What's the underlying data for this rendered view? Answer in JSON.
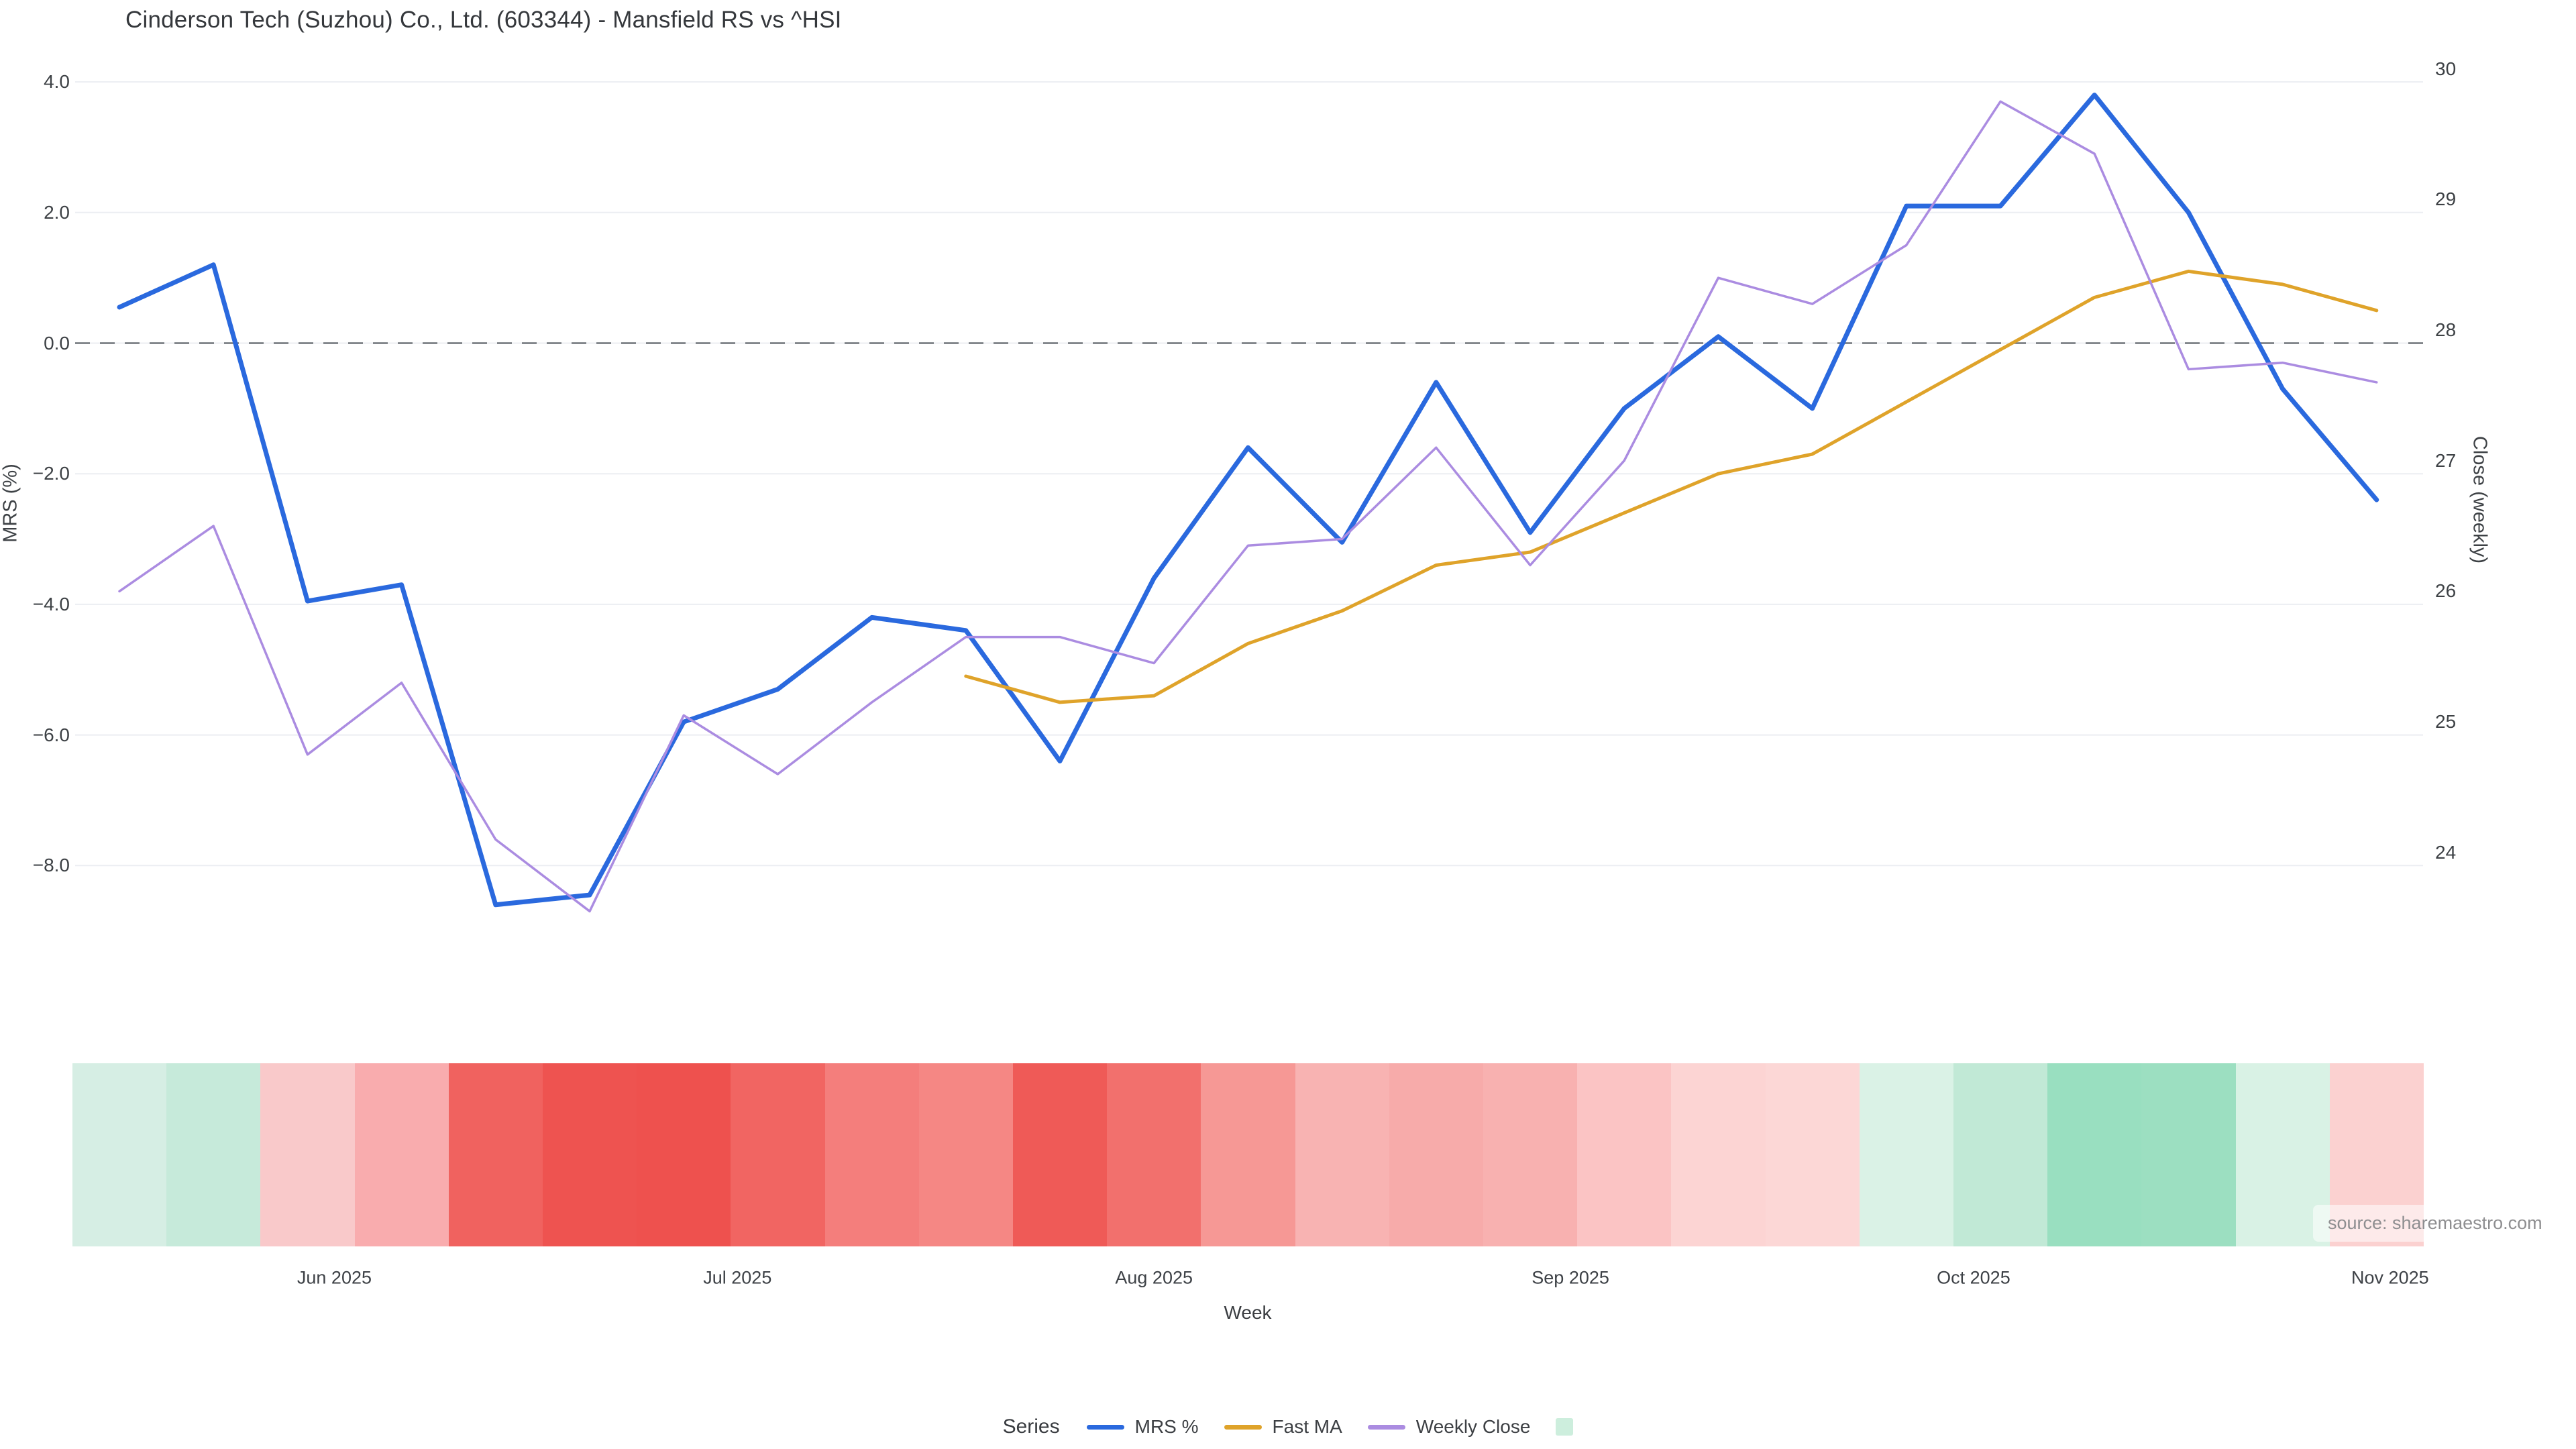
{
  "title": "Cinderson Tech (Suzhou) Co., Ltd. (603344) - Mansfield RS vs ^HSI",
  "source_note": "source: sharemaestro.com",
  "legend": {
    "heading": "Series",
    "items": [
      {
        "label": "MRS %",
        "color": "#2a69de",
        "swatch": "line"
      },
      {
        "label": "Fast MA",
        "color": "#dfa32a",
        "swatch": "line"
      },
      {
        "label": "Weekly Close",
        "color": "#ab8ce1",
        "swatch": "line"
      },
      {
        "label": "",
        "color": "#cdeedd",
        "swatch": "square"
      }
    ]
  },
  "chart_data": {
    "type": "line",
    "title": "Cinderson Tech (Suzhou) Co., Ltd. (603344) - Mansfield RS vs ^HSI",
    "xlabel": "Week",
    "ylabel_left": "MRS (%)",
    "ylabel_right": "Close (weekly)",
    "x": [
      "2025-05-16",
      "2025-05-23",
      "2025-05-30",
      "2025-06-06",
      "2025-06-13",
      "2025-06-20",
      "2025-06-27",
      "2025-07-04",
      "2025-07-11",
      "2025-07-18",
      "2025-07-25",
      "2025-08-01",
      "2025-08-08",
      "2025-08-15",
      "2025-08-22",
      "2025-08-29",
      "2025-09-05",
      "2025-09-12",
      "2025-09-19",
      "2025-09-26",
      "2025-10-03",
      "2025-10-10",
      "2025-10-17",
      "2025-10-24",
      "2025-10-31"
    ],
    "x_ticks": {
      "labels": [
        "Jun 2025",
        "Jul 2025",
        "Aug 2025",
        "Sep 2025",
        "Oct 2025",
        "Nov 2025"
      ],
      "week_positions": [
        2.2857,
        6.5714,
        11,
        15.4286,
        19.7143,
        24.1429
      ]
    },
    "series": [
      {
        "name": "MRS %",
        "axis": "left",
        "color": "#2a69de",
        "line_width": 7,
        "values": [
          0.55,
          1.2,
          -3.95,
          -3.7,
          -8.6,
          -8.45,
          -5.8,
          -5.3,
          -4.2,
          -4.4,
          -6.4,
          -3.6,
          -1.6,
          -3.05,
          -0.6,
          -2.9,
          -1.0,
          0.1,
          -1.0,
          2.1,
          2.1,
          3.8,
          2.0,
          -0.7,
          -2.4
        ]
      },
      {
        "name": "Fast MA",
        "axis": "right",
        "color": "#dfa32a",
        "line_width": 5,
        "values": [
          null,
          null,
          null,
          null,
          null,
          null,
          null,
          null,
          null,
          25.35,
          25.15,
          25.2,
          25.6,
          25.85,
          26.2,
          26.3,
          26.6,
          26.9,
          27.05,
          27.45,
          27.85,
          28.25,
          28.45,
          28.35,
          28.15
        ]
      },
      {
        "name": "Weekly Close",
        "axis": "right",
        "color": "#ab8ce1",
        "line_width": 3.5,
        "values": [
          26.0,
          26.5,
          24.75,
          25.3,
          24.1,
          23.55,
          25.05,
          24.6,
          25.15,
          25.65,
          25.65,
          25.45,
          26.35,
          26.4,
          27.1,
          26.2,
          27.0,
          28.4,
          28.2,
          28.65,
          29.75,
          29.35,
          27.7,
          27.75,
          27.6
        ]
      }
    ],
    "left_axis": {
      "tick_values": [
        4,
        2,
        0,
        -2,
        -4,
        -6,
        -8
      ],
      "tick_labels": [
        "4.0",
        "2.0",
        "0.0",
        "−2.0",
        "−4.0",
        "−6.0",
        "−8.0"
      ],
      "ylim": [
        -9.7,
        4.4
      ]
    },
    "right_axis": {
      "tick_values": [
        30,
        29,
        28,
        27,
        26,
        25,
        24
      ],
      "tick_labels": [
        "30",
        "29",
        "28",
        "27",
        "26",
        "25",
        "24"
      ],
      "ylim": [
        23.0,
        30.1
      ],
      "alignment_note": "MRS 0% aligns with Close 27.9; 2 MRS units = 1 Close unit"
    },
    "zero_line": {
      "mrs_value": 0,
      "style": "dashed",
      "color": "#6e7378"
    },
    "grid": {
      "on": true,
      "color": "#eceef2"
    },
    "legend_position": "bottom center",
    "heatmap_strip": {
      "description": "one colored cell per week under the plot",
      "colors": [
        "#d6eee4",
        "#c6eada",
        "#f9c9ca",
        "#f9acae",
        "#f0625f",
        "#ee5350",
        "#ee514e",
        "#f16562",
        "#f47e7c",
        "#f58784",
        "#ef5a57",
        "#f2706d",
        "#f69895",
        "#f8b3b2",
        "#f7abaa",
        "#f8b1b0",
        "#fbc4c4",
        "#fcd4d3",
        "#fcd7d6",
        "#daf2e6",
        "#c1e9d6",
        "#99dfc0",
        "#9cdfc1",
        "#d9f2e5",
        "#fbd1d0"
      ]
    }
  }
}
